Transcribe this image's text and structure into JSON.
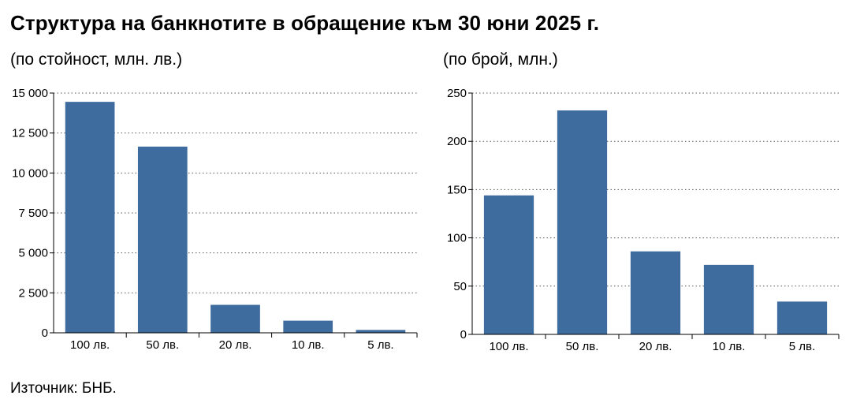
{
  "title": "Структура на банкнотите в обращение към 30 юни 2025 г.",
  "source": "Източник: БНБ.",
  "colors": {
    "bar": "#3e6c9f",
    "grid": "#555555",
    "axis": "#000000"
  },
  "chart_data": [
    {
      "type": "bar",
      "title": "(по стойност, млн. лв.)",
      "categories": [
        "100 лв.",
        "50 лв.",
        "20 лв.",
        "10 лв.",
        "5 лв."
      ],
      "values": [
        14450,
        11650,
        1750,
        760,
        180
      ],
      "ylim": [
        0,
        15000
      ],
      "yticks": [
        0,
        2500,
        5000,
        7500,
        10000,
        12500,
        15000
      ],
      "ytick_labels": [
        "0",
        "2 500",
        "5 000",
        "7 500",
        "10 000",
        "12 500",
        "15 000"
      ],
      "grid": true
    },
    {
      "type": "bar",
      "title": "(по брой, млн.)",
      "categories": [
        "100 лв.",
        "50 лв.",
        "20 лв.",
        "10 лв.",
        "5 лв."
      ],
      "values": [
        144,
        232,
        86,
        72,
        34
      ],
      "ylim": [
        0,
        250
      ],
      "yticks": [
        0,
        50,
        100,
        150,
        200,
        250
      ],
      "ytick_labels": [
        "0",
        "50",
        "100",
        "150",
        "200",
        "250"
      ],
      "grid": true
    }
  ]
}
